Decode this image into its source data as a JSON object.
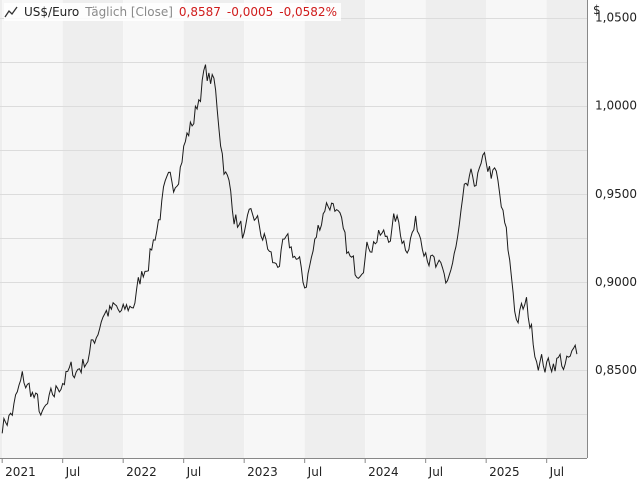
{
  "header": {
    "title": "US$/Euro",
    "interval": "Täglich [Close]",
    "last_value": "0,8587",
    "change": "-0,0005",
    "change_pct": "-0,0582%"
  },
  "colors": {
    "line": "#1a1a1a",
    "change_negative": "#d01c1c",
    "band_light": "#f7f7f7",
    "band_dark": "#eeeeee",
    "grid": "#dcdcdc"
  },
  "chart_data": {
    "type": "line",
    "title": "US$/Euro",
    "series": [
      {
        "name": "US$/Euro",
        "x": [
          "2021-01",
          "2021-02",
          "2021-03",
          "2021-04",
          "2021-05",
          "2021-06",
          "2021-07",
          "2021-08",
          "2021-09",
          "2021-10",
          "2021-11",
          "2021-12",
          "2022-01",
          "2022-02",
          "2022-03",
          "2022-04",
          "2022-05",
          "2022-06",
          "2022-07",
          "2022-08",
          "2022-09",
          "2022-10",
          "2022-11",
          "2022-12",
          "2023-01",
          "2023-02",
          "2023-03",
          "2023-04",
          "2023-05",
          "2023-06",
          "2023-07",
          "2023-08",
          "2023-09",
          "2023-10",
          "2023-11",
          "2023-12",
          "2024-01",
          "2024-02",
          "2024-03",
          "2024-04",
          "2024-05",
          "2024-06",
          "2024-07",
          "2024-08",
          "2024-09",
          "2024-10",
          "2024-11",
          "2024-12",
          "2025-01",
          "2025-02",
          "2025-03",
          "2025-04",
          "2025-05",
          "2025-06",
          "2025-07",
          "2025-08",
          "2025-09",
          "2025-10"
        ],
        "values": [
          0.82,
          0.826,
          0.843,
          0.837,
          0.822,
          0.832,
          0.846,
          0.848,
          0.854,
          0.864,
          0.884,
          0.883,
          0.88,
          0.888,
          0.906,
          0.924,
          0.948,
          0.955,
          0.978,
          0.992,
          1.018,
          1.012,
          0.968,
          0.94,
          0.925,
          0.935,
          0.924,
          0.908,
          0.918,
          0.916,
          0.898,
          0.921,
          0.945,
          0.946,
          0.918,
          0.905,
          0.92,
          0.926,
          0.924,
          0.935,
          0.923,
          0.932,
          0.924,
          0.906,
          0.898,
          0.916,
          0.95,
          0.958,
          0.966,
          0.958,
          0.924,
          0.88,
          0.885,
          0.86,
          0.852,
          0.857,
          0.852,
          0.859
        ]
      }
    ],
    "x_tick_labels": [
      "2021",
      "Jul",
      "2022",
      "Jul",
      "2023",
      "Jul",
      "2024",
      "Jul",
      "2025",
      "Jul"
    ],
    "y_tick_labels": [
      "0,8500",
      "0,9000",
      "0,9500",
      "1,0000",
      "1,0500"
    ],
    "y_ticks": [
      0.85,
      0.9,
      0.95,
      1.0,
      1.05
    ],
    "y_unit": "$",
    "ylim": [
      0.8,
      1.06
    ],
    "x_range": [
      "2021-01",
      "2025-11"
    ],
    "grid": true,
    "legend": "none"
  }
}
